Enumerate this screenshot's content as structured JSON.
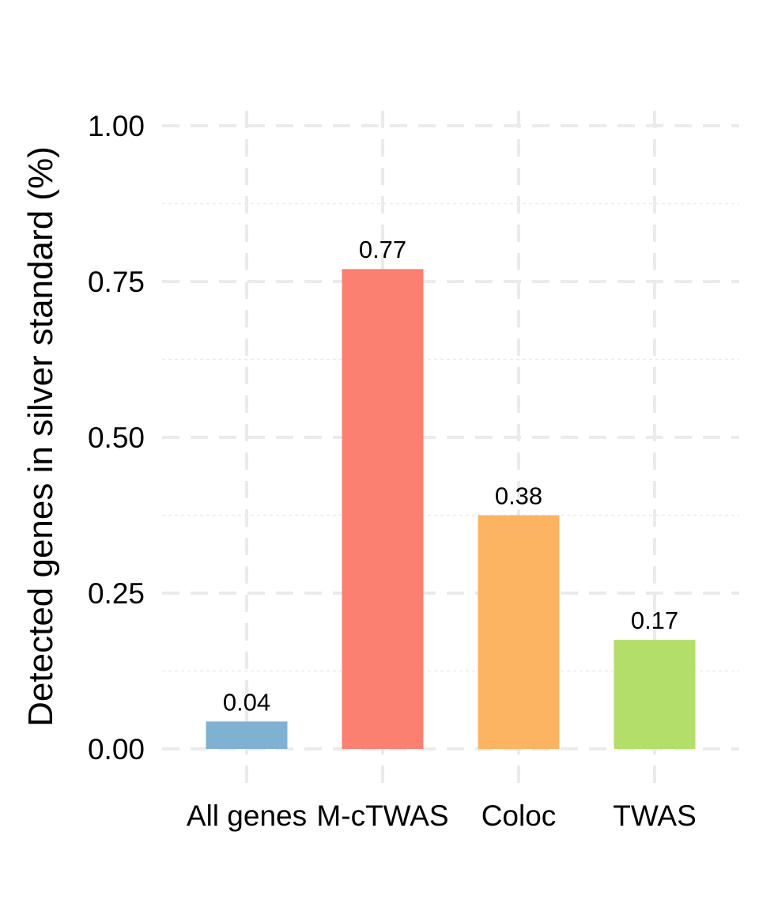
{
  "chart_data": {
    "type": "bar",
    "categories": [
      "All genes",
      "M-cTWAS",
      "Coloc",
      "TWAS"
    ],
    "values": [
      0.044,
      0.77,
      0.375,
      0.175
    ],
    "data_labels": [
      "0.04",
      "0.77",
      "0.38",
      "0.17"
    ],
    "colors": [
      "#80b1d3",
      "#fb8072",
      "#fdb462",
      "#b3de69"
    ],
    "title": "",
    "xlabel": "",
    "ylabel": "Detected genes in silver standard (%)",
    "ylim": [
      0,
      1
    ],
    "yticks": [
      0,
      0.25,
      0.5,
      0.75,
      1
    ],
    "ytick_labels": [
      "0.00",
      "0.25",
      "0.50",
      "0.75",
      "1.00"
    ],
    "grid": true,
    "legend": "none"
  }
}
